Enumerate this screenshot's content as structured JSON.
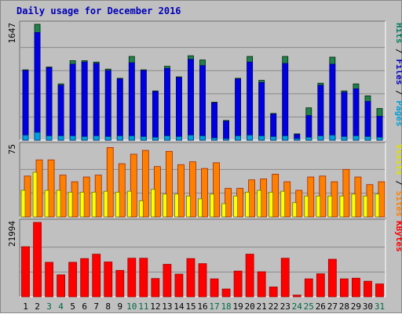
{
  "title": "Daily usage for December 2016",
  "chart_data": [
    {
      "type": "bar",
      "panel": "pages-files-hits",
      "max_label": "1647",
      "ylim": [
        0,
        1647
      ],
      "legend": [
        {
          "text": "Pages",
          "color": "#00a0d8"
        },
        {
          "text": "Files",
          "color": "#0000c8"
        },
        {
          "text": "Hits",
          "color": "#008060"
        }
      ],
      "categories": [
        "1",
        "2",
        "3",
        "4",
        "5",
        "6",
        "7",
        "8",
        "9",
        "10",
        "11",
        "12",
        "13",
        "14",
        "15",
        "16",
        "17",
        "18",
        "19",
        "20",
        "21",
        "22",
        "23",
        "24",
        "25",
        "26",
        "27",
        "28",
        "29",
        "30",
        "31"
      ],
      "series": [
        {
          "name": "Hits",
          "color": "#208050",
          "values": [
            1000,
            1647,
            1040,
            800,
            1130,
            1130,
            1110,
            1010,
            880,
            1190,
            1000,
            700,
            1050,
            900,
            1200,
            1140,
            540,
            280,
            880,
            1190,
            850,
            380,
            1190,
            90,
            460,
            810,
            1180,
            700,
            800,
            630,
            450
          ]
        },
        {
          "name": "Files",
          "color": "#0000e0",
          "values": [
            990,
            1530,
            1030,
            780,
            1080,
            1110,
            1090,
            990,
            870,
            1100,
            990,
            690,
            1020,
            890,
            1150,
            1060,
            530,
            270,
            870,
            1110,
            820,
            370,
            1090,
            80,
            350,
            780,
            1080,
            680,
            730,
            550,
            340
          ]
        },
        {
          "name": "Pages",
          "color": "#00a0e0",
          "values": [
            70,
            110,
            60,
            60,
            60,
            50,
            60,
            50,
            60,
            60,
            50,
            40,
            60,
            50,
            70,
            60,
            30,
            20,
            60,
            70,
            60,
            50,
            60,
            20,
            40,
            60,
            70,
            50,
            60,
            50,
            40
          ]
        }
      ]
    },
    {
      "type": "bar",
      "panel": "sites-visits",
      "max_label": "75",
      "ylim": [
        0,
        75
      ],
      "legend": [
        {
          "text": "Sites",
          "color": "#ff8000"
        },
        {
          "text": "Visits",
          "color": "#e0e000"
        }
      ],
      "categories": [
        "1",
        "2",
        "3",
        "4",
        "5",
        "6",
        "7",
        "8",
        "9",
        "10",
        "11",
        "12",
        "13",
        "14",
        "15",
        "16",
        "17",
        "18",
        "19",
        "20",
        "21",
        "22",
        "23",
        "24",
        "25",
        "26",
        "27",
        "28",
        "29",
        "30",
        "31"
      ],
      "series": [
        {
          "name": "Sites",
          "color": "#ff8000",
          "values": [
            43,
            60,
            60,
            44,
            37,
            42,
            44,
            73,
            56,
            66,
            70,
            53,
            69,
            55,
            58,
            51,
            57,
            30,
            30,
            39,
            40,
            45,
            37,
            28,
            42,
            43,
            37,
            50,
            42,
            34,
            37
          ]
        },
        {
          "name": "Visits",
          "color": "#ffff00",
          "values": [
            28,
            47,
            28,
            28,
            26,
            26,
            26,
            27,
            26,
            27,
            17,
            29,
            24,
            24,
            22,
            19,
            24,
            14,
            22,
            26,
            28,
            26,
            27,
            15,
            22,
            22,
            22,
            22,
            24,
            22,
            24
          ]
        }
      ]
    },
    {
      "type": "bar",
      "panel": "kbytes",
      "max_label": "21994",
      "ylim": [
        0,
        21994
      ],
      "legend": [
        {
          "text": "KBytes",
          "color": "#ff0000"
        }
      ],
      "categories": [
        "1",
        "2",
        "3",
        "4",
        "5",
        "6",
        "7",
        "8",
        "9",
        "10",
        "11",
        "12",
        "13",
        "14",
        "15",
        "16",
        "17",
        "18",
        "19",
        "20",
        "21",
        "22",
        "23",
        "24",
        "25",
        "26",
        "27",
        "28",
        "29",
        "30",
        "31"
      ],
      "series": [
        {
          "name": "KBytes",
          "color": "#ff0000",
          "values": [
            14800,
            21994,
            10200,
            6500,
            10200,
            11300,
            12600,
            10300,
            7800,
            11400,
            11400,
            5400,
            9600,
            6700,
            11300,
            9800,
            5300,
            2300,
            7600,
            12600,
            7400,
            2900,
            11400,
            500,
            5300,
            6800,
            11100,
            5300,
            5500,
            4600,
            3800
          ]
        }
      ]
    }
  ],
  "day_colors": {
    "weekday": "#000000",
    "weekend": "#006848"
  },
  "weekend_days": [
    3,
    4,
    10,
    11,
    17,
    18,
    24,
    25,
    31
  ]
}
